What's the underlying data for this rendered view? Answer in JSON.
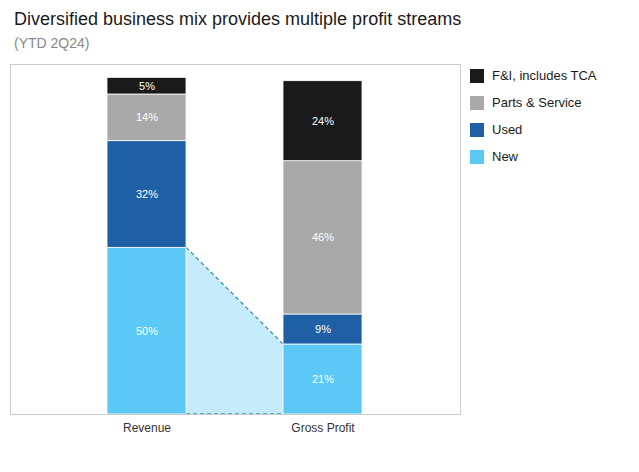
{
  "chart_data": {
    "type": "bar",
    "title": "Diversified business mix provides multiple profit streams",
    "subtitle": "(YTD 2Q24)",
    "categories": [
      "Revenue",
      "Gross Profit"
    ],
    "series": [
      {
        "name": "New",
        "color": "#5bc8f5",
        "values": [
          50,
          21
        ],
        "value_labels": [
          "50%",
          "21%"
        ]
      },
      {
        "name": "Used",
        "color": "#1f5fa6",
        "values": [
          32,
          9
        ],
        "value_labels": [
          "32%",
          "9%"
        ]
      },
      {
        "name": "Parts & Service",
        "color": "#a9a9a9",
        "values": [
          14,
          46
        ],
        "value_labels": [
          "14%",
          "46%"
        ]
      },
      {
        "name": "F&I, includes TCA",
        "color": "#1a1a1a",
        "values": [
          5,
          24
        ],
        "value_labels": [
          "5%",
          "24%"
        ]
      }
    ],
    "stacked": true,
    "data_labels": true,
    "tick_labels": "x",
    "legend": "upper right",
    "ylim": [
      0,
      105
    ]
  }
}
